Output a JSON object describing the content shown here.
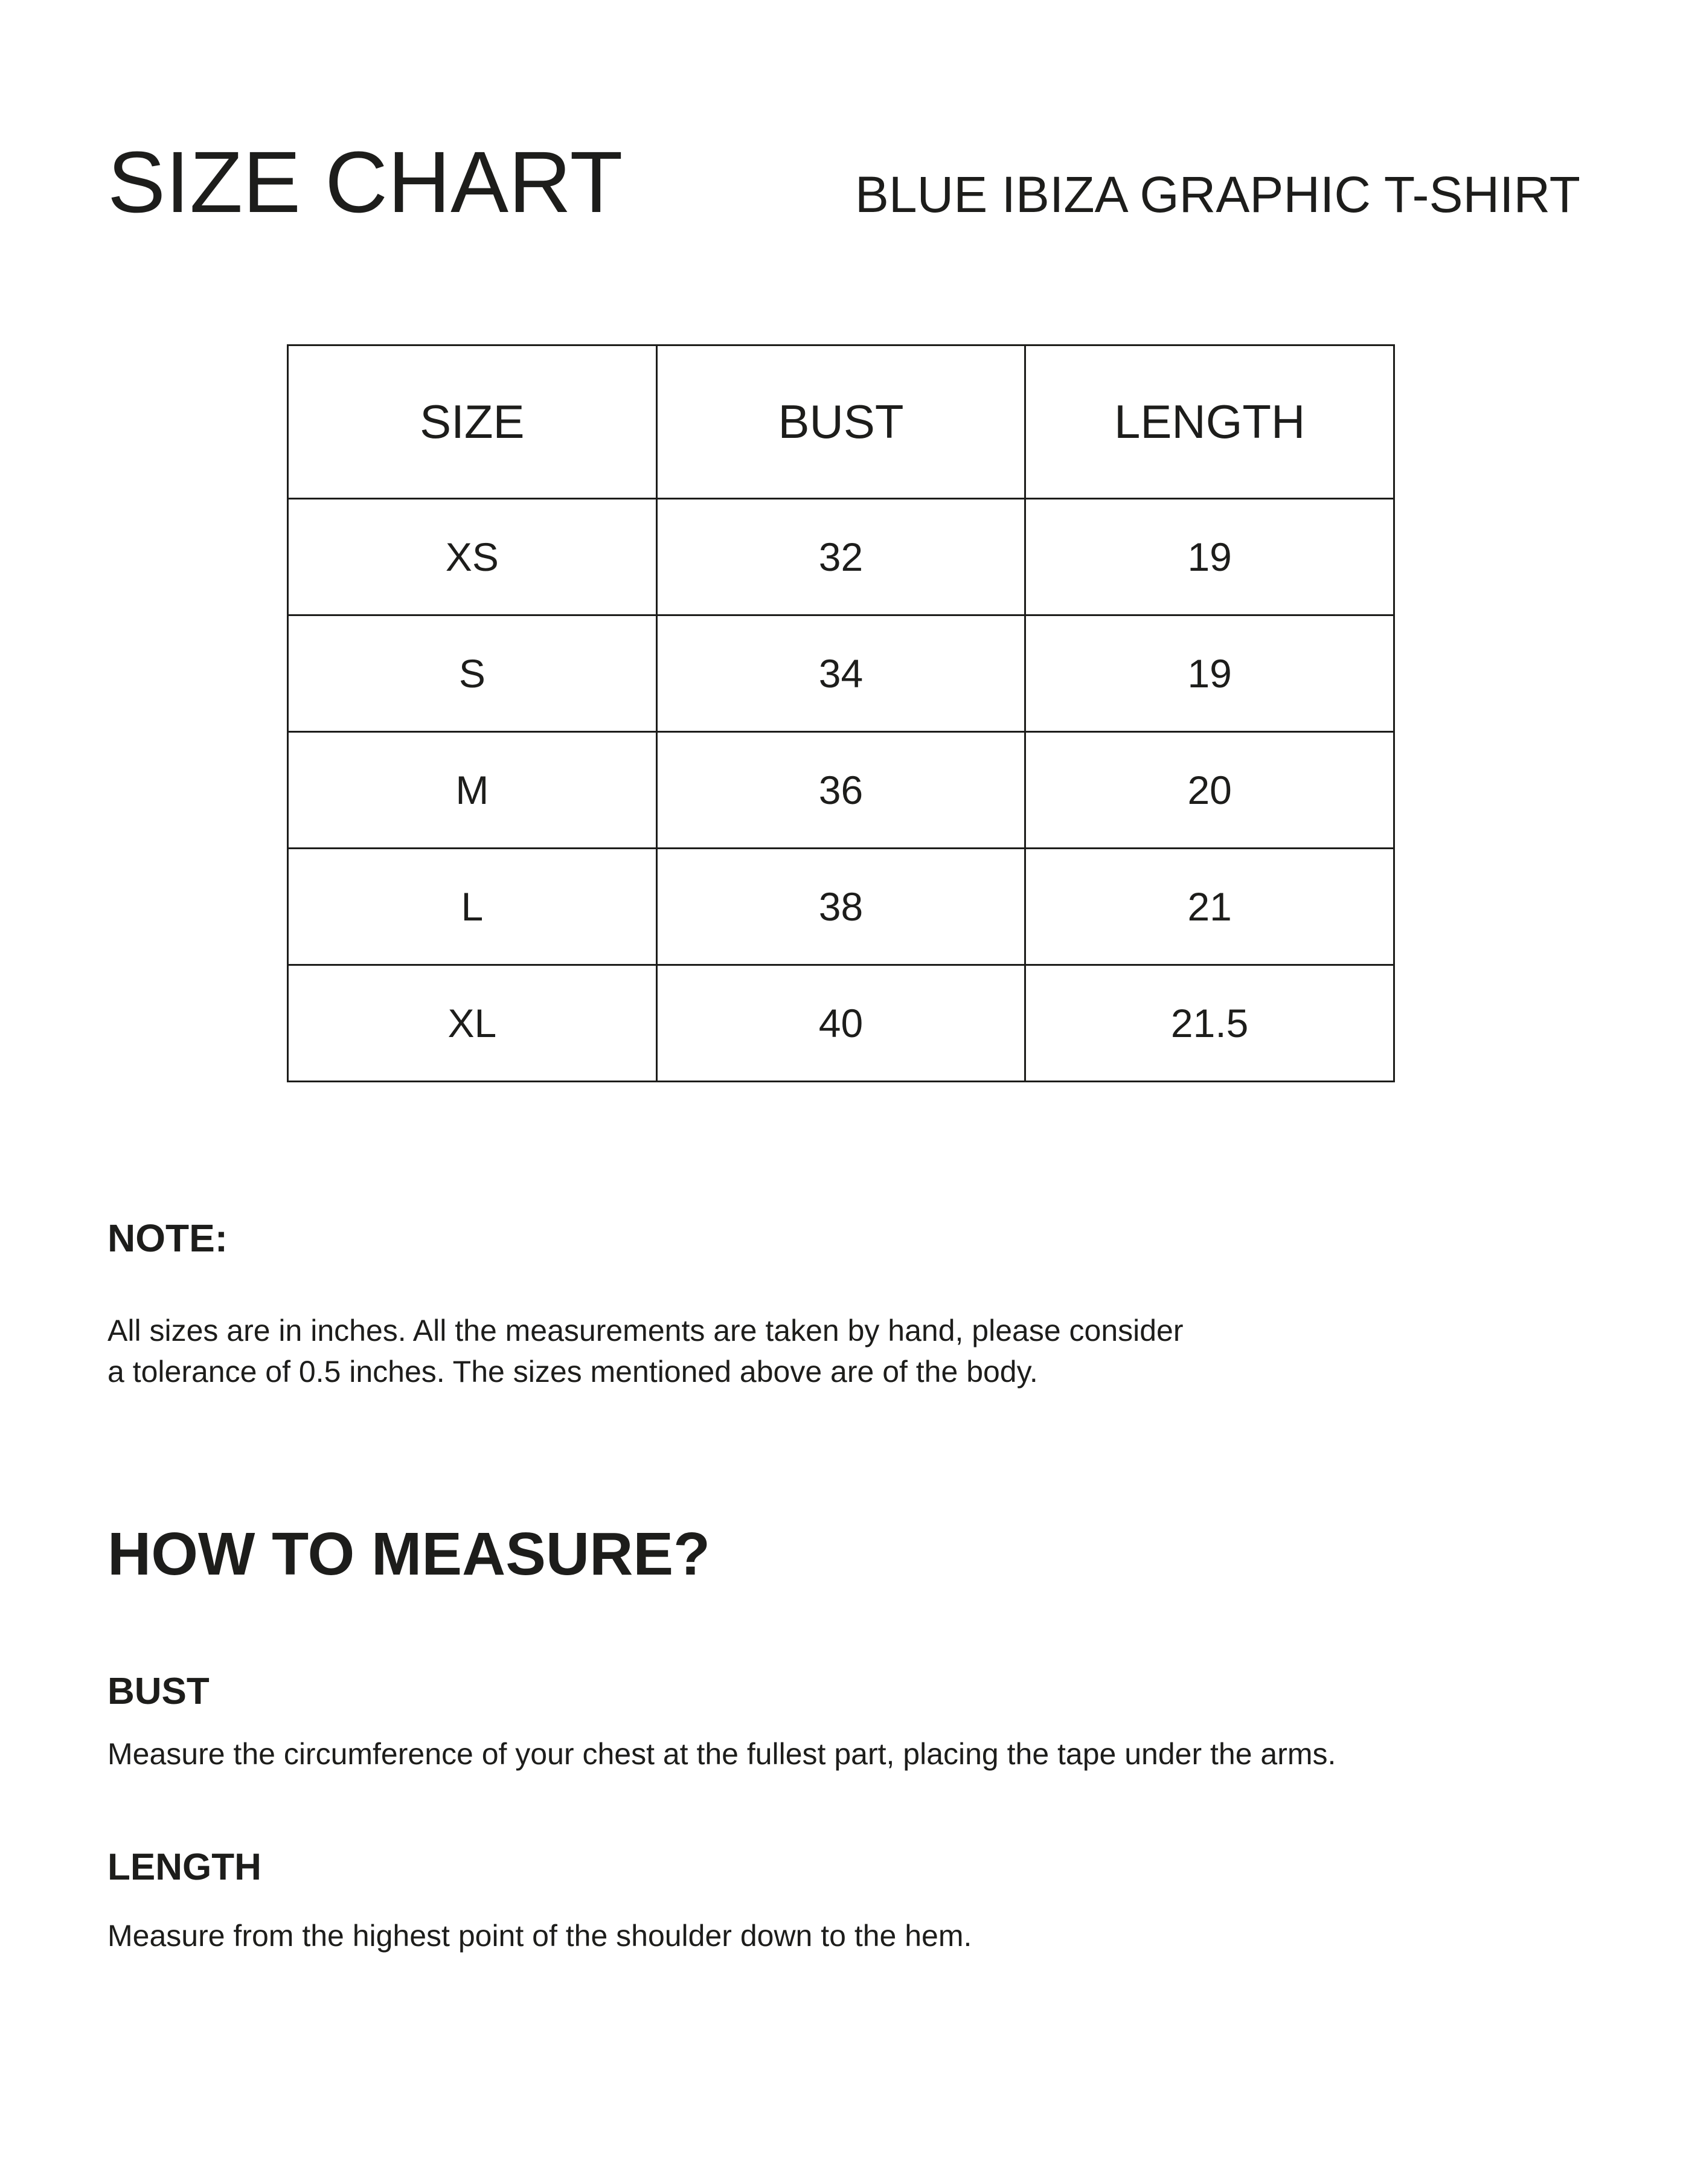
{
  "page": {
    "title": "SIZE CHART",
    "product_name": "BLUE IBIZA GRAPHIC T-SHIRT"
  },
  "size_table": {
    "columns": [
      "SIZE",
      "BUST",
      "LENGTH"
    ],
    "rows": [
      {
        "size": "XS",
        "bust": "32",
        "length": "19"
      },
      {
        "size": "S",
        "bust": "34",
        "length": "19"
      },
      {
        "size": "M",
        "bust": "36",
        "length": "20"
      },
      {
        "size": "L",
        "bust": "38",
        "length": "21"
      },
      {
        "size": "XL",
        "bust": "40",
        "length": "21.5"
      }
    ]
  },
  "note": {
    "heading": "NOTE:",
    "body": "All sizes are in inches. All the measurements are taken by hand, please consider\na tolerance of 0.5 inches. The sizes mentioned above are of the body."
  },
  "how_to_measure": {
    "heading": "HOW TO MEASURE?",
    "sections": [
      {
        "label": "BUST",
        "description": "Measure the circumference of your chest at the fullest part, placing the tape under the arms."
      },
      {
        "label": "LENGTH",
        "description": "Measure from the highest point of the shoulder down to the hem."
      }
    ]
  },
  "colors": {
    "text": "#1d1d1b",
    "background": "#ffffff",
    "table_border": "#1d1d1b"
  }
}
